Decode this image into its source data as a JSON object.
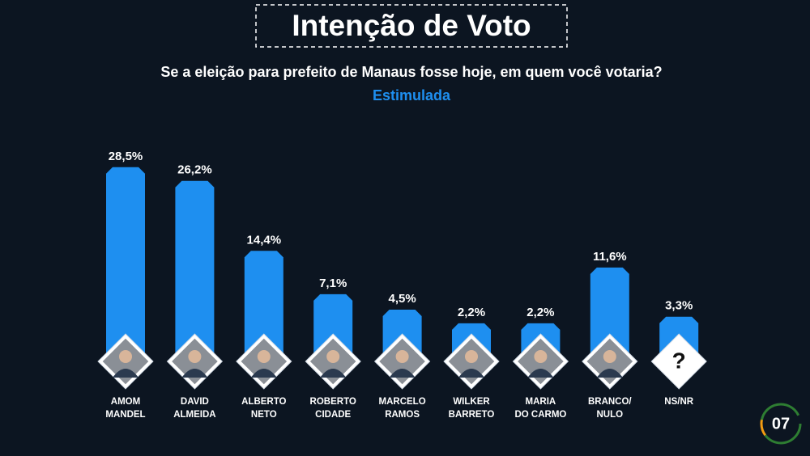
{
  "chart_data": {
    "type": "bar",
    "title": "Intenção de Voto",
    "subtitle": "Se a eleição para prefeito de Manaus fosse hoje, em quem você votaria?",
    "subtitle2": "Estimulada",
    "categories": [
      [
        "AMOM",
        "MANDEL"
      ],
      [
        "DAVID",
        "ALMEIDA"
      ],
      [
        "ALBERTO",
        "NETO"
      ],
      [
        "ROBERTO",
        "CIDADE"
      ],
      [
        "MARCELO",
        "RAMOS"
      ],
      [
        "WILKER",
        "BARRETO"
      ],
      [
        "MARIA",
        "DO CARMO"
      ],
      [
        "BRANCO/",
        "NULO"
      ],
      [
        "NS/NR"
      ]
    ],
    "values": [
      28.5,
      26.2,
      14.4,
      7.1,
      4.5,
      2.2,
      2.2,
      11.6,
      3.3
    ],
    "value_labels": [
      "28,5%",
      "26,2%",
      "14,4%",
      "7,1%",
      "4,5%",
      "2,2%",
      "2,2%",
      "11,6%",
      "3,3%"
    ],
    "color": "#1e8ff0",
    "ylim": [
      0,
      30
    ],
    "unknown_icon": "?",
    "page_number": "07"
  }
}
